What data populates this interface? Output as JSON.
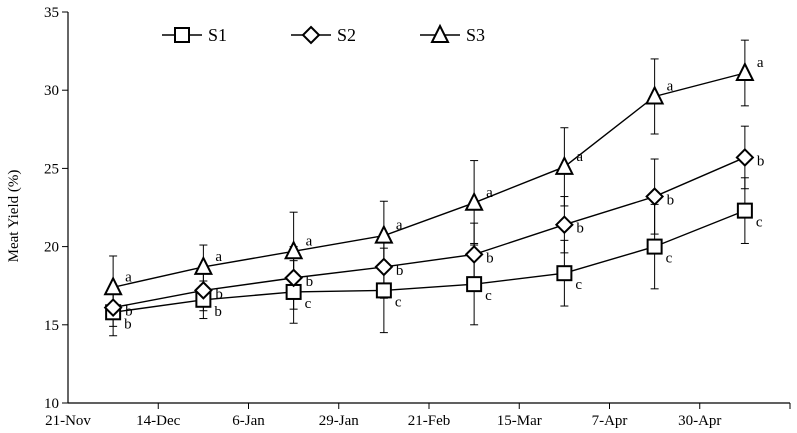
{
  "chart_data": {
    "type": "line",
    "title": "",
    "xlabel": "",
    "ylabel": "Meat  Yield (%)",
    "ylim": [
      10,
      35
    ],
    "yticks": [
      10,
      15,
      20,
      25,
      30,
      35
    ],
    "x_tick_labels": [
      "21-Nov",
      "14-Dec",
      "6-Jan",
      "29-Jan",
      "21-Feb",
      "15-Mar",
      "7-Apr",
      "30-Apr"
    ],
    "grid": false,
    "legend_position": "top",
    "error_bars": true,
    "series": [
      {
        "name": "S1",
        "marker": "square",
        "x": [
          "2 Dec",
          "25 Dec",
          "17 Jan",
          "9 Feb",
          "4 Mar",
          "26 Mar",
          "18 Apr",
          "11 May"
        ],
        "values": [
          15.8,
          16.6,
          17.1,
          17.2,
          17.6,
          18.3,
          20.0,
          22.3
        ],
        "errors": [
          1.5,
          1.2,
          2.0,
          2.7,
          2.6,
          2.1,
          2.7,
          2.1
        ],
        "letters": [
          "b",
          "b",
          "c",
          "c",
          "c",
          "c",
          "c",
          "c"
        ]
      },
      {
        "name": "S2",
        "marker": "diamond",
        "x": [
          "2 Dec",
          "25 Dec",
          "17 Jan",
          "9 Feb",
          "4 Mar",
          "26 Mar",
          "18 Apr",
          "11 May"
        ],
        "values": [
          16.1,
          17.2,
          18.0,
          18.7,
          19.5,
          21.4,
          23.2,
          25.7
        ],
        "errors": [
          1.2,
          1.3,
          2.0,
          2.0,
          2.0,
          1.8,
          2.4,
          2.0
        ],
        "letters": [
          "b",
          "b",
          "b",
          "b",
          "b",
          "b",
          "b",
          "b"
        ]
      },
      {
        "name": "S3",
        "marker": "triangle",
        "x": [
          "2 Dec",
          "25 Dec",
          "17 Jan",
          "9 Feb",
          "4 Mar",
          "26 Mar",
          "18 Apr",
          "11 May"
        ],
        "values": [
          17.4,
          18.7,
          19.7,
          20.7,
          22.8,
          25.1,
          29.6,
          31.1
        ],
        "errors": [
          2.0,
          1.4,
          2.5,
          2.2,
          2.7,
          2.5,
          2.4,
          2.1
        ],
        "letters": [
          "a",
          "a",
          "a",
          "a",
          "a",
          "a",
          "a",
          "a"
        ]
      }
    ]
  }
}
